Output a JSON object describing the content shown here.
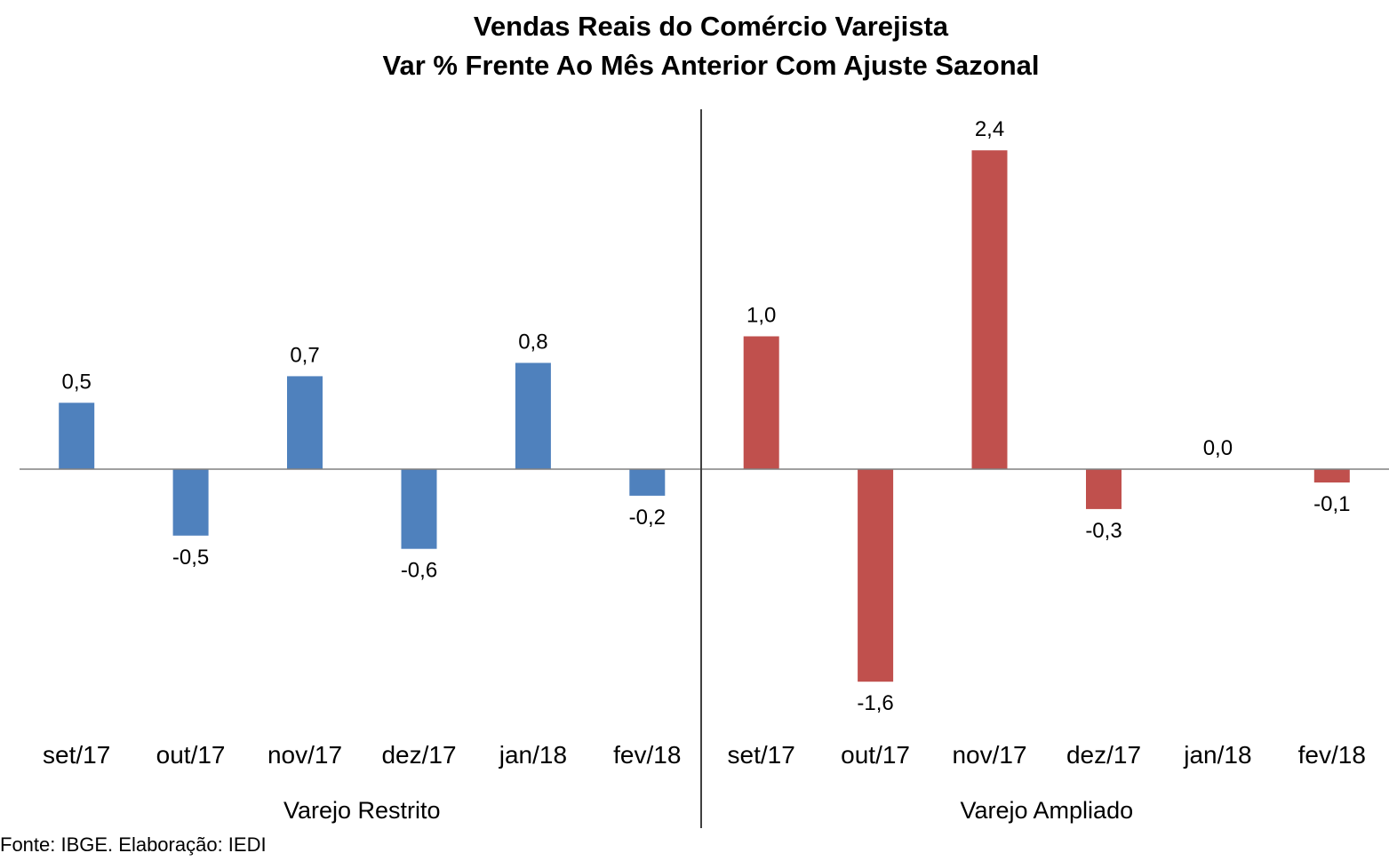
{
  "chart_data": {
    "type": "bar",
    "title": "Vendas Reais do Comércio Varejista",
    "subtitle": "Var % Frente Ao Mês Anterior Com Ajuste Sazonal",
    "xlabel": "",
    "ylabel": "",
    "ylim": [
      -2.0,
      2.9
    ],
    "grid": false,
    "legend": "none",
    "groups": [
      {
        "name": "Varejo Restrito",
        "color": "#4F81BD",
        "categories": [
          "set/17",
          "out/17",
          "nov/17",
          "dez/17",
          "jan/18",
          "fev/18"
        ],
        "values": [
          0.5,
          -0.5,
          0.7,
          -0.6,
          0.8,
          -0.2
        ],
        "labels": [
          "0,5",
          "-0,5",
          "0,7",
          "-0,6",
          "0,8",
          "-0,2"
        ]
      },
      {
        "name": "Varejo Ampliado",
        "color": "#C0504D",
        "categories": [
          "set/17",
          "out/17",
          "nov/17",
          "dez/17",
          "jan/18",
          "fev/18"
        ],
        "values": [
          1.0,
          -1.6,
          2.4,
          -0.3,
          0.0,
          -0.1
        ],
        "labels": [
          "1,0",
          "-1,6",
          "2,4",
          "-0,3",
          "0,0",
          "-0,1"
        ]
      }
    ]
  },
  "source": "Fonte: IBGE. Elaboração: IEDI"
}
